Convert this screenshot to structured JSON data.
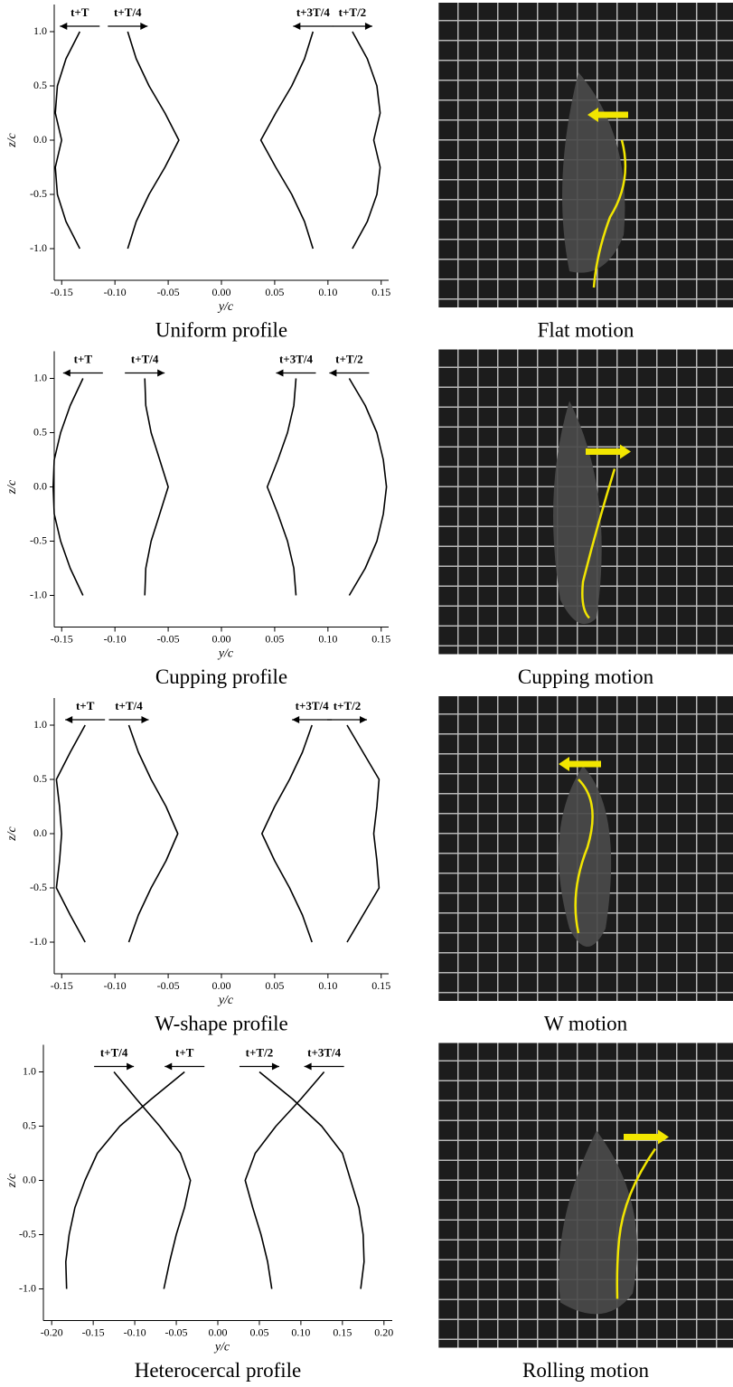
{
  "chart_data": [
    {
      "type": "line",
      "title": "Uniform profile",
      "xlabel": "y/c",
      "ylabel": "z/c",
      "color": "#000000",
      "xlim": [
        -0.157,
        0.157
      ],
      "ylim": [
        -1.25,
        1.25
      ],
      "xticks": [
        -0.15,
        {
          "value": -0.1,
          "label": "-0.10"
        },
        -0.05,
        {
          "value": 0,
          "label": "0.00"
        },
        0.05,
        {
          "value": 0.1,
          "label": "0.10"
        },
        0.15
      ],
      "yticks": [
        {
          "value": -1,
          "label": "-1.0"
        },
        -0.5,
        {
          "value": 0,
          "label": "0.0"
        },
        0.5,
        {
          "value": 1,
          "label": "1.0"
        }
      ],
      "z": [
        1,
        0.75,
        0.5,
        0.25,
        0,
        -0.25,
        -0.5,
        -0.75,
        -1
      ],
      "series": [
        {
          "name": "t+T",
          "arrow": "left",
          "values": [
            -0.133,
            -0.146,
            -0.154,
            -0.156,
            -0.15,
            -0.156,
            -0.154,
            -0.146,
            -0.133
          ]
        },
        {
          "name": "t+T/4",
          "arrow": "right",
          "values": [
            -0.088,
            -0.08,
            -0.068,
            -0.053,
            -0.04,
            -0.053,
            -0.068,
            -0.08,
            -0.088
          ]
        },
        {
          "name": "t+3T/4",
          "arrow": "left",
          "values": [
            0.086,
            0.078,
            0.066,
            0.051,
            0.037,
            0.051,
            0.066,
            0.078,
            0.086
          ]
        },
        {
          "name": "t+T/2",
          "arrow": "right",
          "values": [
            0.123,
            0.137,
            0.146,
            0.149,
            0.143,
            0.149,
            0.146,
            0.137,
            0.123
          ]
        }
      ]
    },
    {
      "type": "line",
      "title": "Cupping profile",
      "xlabel": "y/c",
      "ylabel": "z/c",
      "color": "#000000",
      "xlim": [
        -0.157,
        0.157
      ],
      "ylim": [
        -1.25,
        1.25
      ],
      "xticks": [
        -0.15,
        {
          "value": -0.1,
          "label": "-0.10"
        },
        -0.05,
        {
          "value": 0,
          "label": "0.00"
        },
        0.05,
        {
          "value": 0.1,
          "label": "0.10"
        },
        0.15
      ],
      "yticks": [
        {
          "value": -1,
          "label": "-1.0"
        },
        -0.5,
        {
          "value": 0,
          "label": "0.0"
        },
        0.5,
        {
          "value": 1,
          "label": "1.0"
        }
      ],
      "z": [
        1,
        0.75,
        0.5,
        0.25,
        0,
        -0.25,
        -0.5,
        -0.75,
        -1
      ],
      "series": [
        {
          "name": "t+T",
          "arrow": "left",
          "values": [
            -0.13,
            -0.142,
            -0.151,
            -0.157,
            -0.158,
            -0.157,
            -0.151,
            -0.142,
            -0.13
          ]
        },
        {
          "name": "t+T/4",
          "arrow": "right",
          "values": [
            -0.072,
            -0.071,
            -0.066,
            -0.058,
            -0.05,
            -0.058,
            -0.066,
            -0.071,
            -0.072
          ]
        },
        {
          "name": "t+3T/4",
          "arrow": "left",
          "values": [
            0.07,
            0.068,
            0.062,
            0.053,
            0.043,
            0.053,
            0.062,
            0.068,
            0.07
          ]
        },
        {
          "name": "t+T/2",
          "arrow": "left",
          "values": [
            0.12,
            0.135,
            0.146,
            0.152,
            0.155,
            0.152,
            0.146,
            0.135,
            0.12
          ]
        }
      ]
    },
    {
      "type": "line",
      "title": "W-shape profile",
      "xlabel": "y/c",
      "ylabel": "z/c",
      "color": "#000000",
      "xlim": [
        -0.157,
        0.157
      ],
      "ylim": [
        -1.25,
        1.25
      ],
      "xticks": [
        -0.15,
        {
          "value": -0.1,
          "label": "-0.10"
        },
        -0.05,
        {
          "value": 0,
          "label": "0.00"
        },
        0.05,
        {
          "value": 0.1,
          "label": "0.10"
        },
        0.15
      ],
      "yticks": [
        {
          "value": -1,
          "label": "-1.0"
        },
        -0.5,
        {
          "value": 0,
          "label": "0.0"
        },
        0.5,
        {
          "value": 1,
          "label": "1.0"
        }
      ],
      "z": [
        1,
        0.75,
        0.5,
        0.25,
        0,
        -0.25,
        -0.5,
        -0.75,
        -1
      ],
      "series": [
        {
          "name": "t+T",
          "arrow": "left",
          "values": [
            -0.128,
            -0.142,
            -0.155,
            -0.152,
            -0.15,
            -0.152,
            -0.155,
            -0.142,
            -0.128
          ]
        },
        {
          "name": "t+T/4",
          "arrow": "right",
          "values": [
            -0.087,
            -0.078,
            -0.066,
            -0.052,
            -0.041,
            -0.052,
            -0.066,
            -0.078,
            -0.087
          ]
        },
        {
          "name": "t+3T/4",
          "arrow": "left",
          "values": [
            0.085,
            0.076,
            0.064,
            0.05,
            0.038,
            0.05,
            0.064,
            0.076,
            0.085
          ]
        },
        {
          "name": "t+T/2",
          "arrow": "right",
          "values": [
            0.118,
            0.133,
            0.148,
            0.146,
            0.143,
            0.146,
            0.148,
            0.133,
            0.118
          ]
        }
      ]
    },
    {
      "type": "line",
      "title": "Heterocercal profile",
      "xlabel": "y/c",
      "ylabel": "z/c",
      "color": "#000000",
      "xlim": [
        -0.21,
        0.21
      ],
      "ylim": [
        -1.25,
        1.25
      ],
      "xticks": [
        {
          "value": -0.2,
          "label": "-0.20"
        },
        -0.15,
        {
          "value": -0.1,
          "label": "-0.10"
        },
        -0.05,
        {
          "value": 0,
          "label": "0.00"
        },
        0.05,
        {
          "value": 0.1,
          "label": "0.10"
        },
        0.15,
        {
          "value": 0.2,
          "label": "0.20"
        }
      ],
      "yticks": [
        {
          "value": -1,
          "label": "-1.0"
        },
        -0.5,
        {
          "value": 0,
          "label": "0.0"
        },
        0.5,
        {
          "value": 1,
          "label": "1.0"
        }
      ],
      "z": [
        1,
        0.75,
        0.5,
        0.25,
        0,
        -0.25,
        -0.5,
        -0.75,
        -1
      ],
      "series": [
        {
          "name": "t+T/4",
          "arrow": "right",
          "values": [
            -0.125,
            -0.098,
            -0.07,
            -0.045,
            -0.033,
            -0.04,
            -0.05,
            -0.058,
            -0.065
          ]
        },
        {
          "name": "t+T",
          "arrow": "left",
          "values": [
            -0.04,
            -0.08,
            -0.118,
            -0.145,
            -0.16,
            -0.172,
            -0.179,
            -0.183,
            -0.182
          ]
        },
        {
          "name": "t+T/2",
          "arrow": "right",
          "values": [
            0.05,
            0.09,
            0.125,
            0.15,
            0.16,
            0.17,
            0.175,
            0.176,
            0.172
          ]
        },
        {
          "name": "t+3T/4",
          "arrow": "left",
          "values": [
            0.128,
            0.1,
            0.07,
            0.045,
            0.033,
            0.042,
            0.052,
            0.06,
            0.065
          ]
        }
      ]
    }
  ],
  "photos": [
    {
      "caption": "Flat motion"
    },
    {
      "caption": "Cupping motion"
    },
    {
      "caption": "W motion"
    },
    {
      "caption": "Rolling motion"
    }
  ]
}
